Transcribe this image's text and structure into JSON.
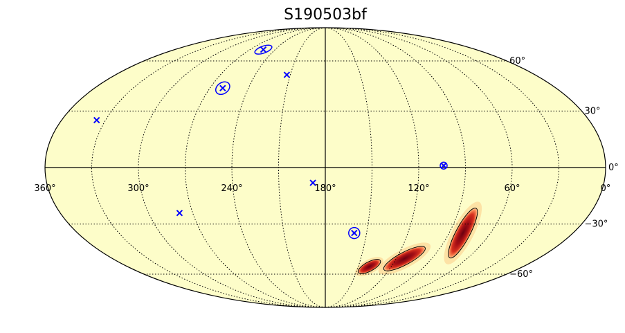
{
  "chart_data": {
    "type": "scatter",
    "title": "S190503bf",
    "projection": "mollweide",
    "background_color": "#fdfdc9",
    "grid": true,
    "x_range_deg": [
      0,
      360
    ],
    "x_direction": "descending-left-to-right",
    "y_range_deg": [
      -90,
      90
    ],
    "meridians_deg": [
      0,
      30,
      60,
      90,
      120,
      150,
      180,
      210,
      240,
      270,
      300,
      330,
      360
    ],
    "parallels_deg": [
      -60,
      -30,
      0,
      30,
      60
    ],
    "x_ticks": [
      {
        "value": 360,
        "label": "360°"
      },
      {
        "value": 300,
        "label": "300°"
      },
      {
        "value": 240,
        "label": "240°"
      },
      {
        "value": 180,
        "label": "180°"
      },
      {
        "value": 120,
        "label": "120°"
      },
      {
        "value": 60,
        "label": "60°"
      },
      {
        "value": 0,
        "label": "0°"
      }
    ],
    "y_ticks": [
      {
        "value": 60,
        "label": "60°"
      },
      {
        "value": 30,
        "label": "30°"
      },
      {
        "value": 0,
        "label": "0°"
      },
      {
        "value": -30,
        "label": "−30°"
      },
      {
        "value": -60,
        "label": "−60°"
      }
    ],
    "probability_regions": [
      {
        "ra": 80,
        "dec": -35,
        "width_deg": 9,
        "length_deg": 36,
        "tilt_deg": 62
      },
      {
        "ra": 113,
        "dec": -50,
        "width_deg": 8,
        "length_deg": 30,
        "tilt_deg": 28
      },
      {
        "ra": 140,
        "dec": -55,
        "width_deg": 6,
        "length_deg": 16,
        "tilt_deg": 28
      }
    ],
    "markers": [
      {
        "ra": 336,
        "dec": 25,
        "marker": "x",
        "color": "#0000ff",
        "circle": "none"
      },
      {
        "ra": 254,
        "dec": 68,
        "marker": "x",
        "color": "#0000ff",
        "circle": "ellipse"
      },
      {
        "ra": 260,
        "dec": 43,
        "marker": "x",
        "color": "#0000ff",
        "circle": "ellipse"
      },
      {
        "ra": 213,
        "dec": 51,
        "marker": "x",
        "color": "#0000ff",
        "circle": "none"
      },
      {
        "ra": 188,
        "dec": -8,
        "marker": "x",
        "color": "#0000ff",
        "circle": "none"
      },
      {
        "ra": 279,
        "dec": -24,
        "marker": "x",
        "color": "#0000ff",
        "circle": "none"
      },
      {
        "ra": 159,
        "dec": -35,
        "marker": "x",
        "color": "#0000ff",
        "circle": "circle"
      },
      {
        "ra": 104,
        "dec": 1,
        "marker": "x",
        "color": "#0000ff",
        "circle": "circle"
      }
    ],
    "colors": {
      "grid": "#000000",
      "outline": "#000000",
      "marker": "#0000ff",
      "region_dark": "#6b0010",
      "region_mid": "#d7301f",
      "region_light": "#fdae61"
    }
  }
}
